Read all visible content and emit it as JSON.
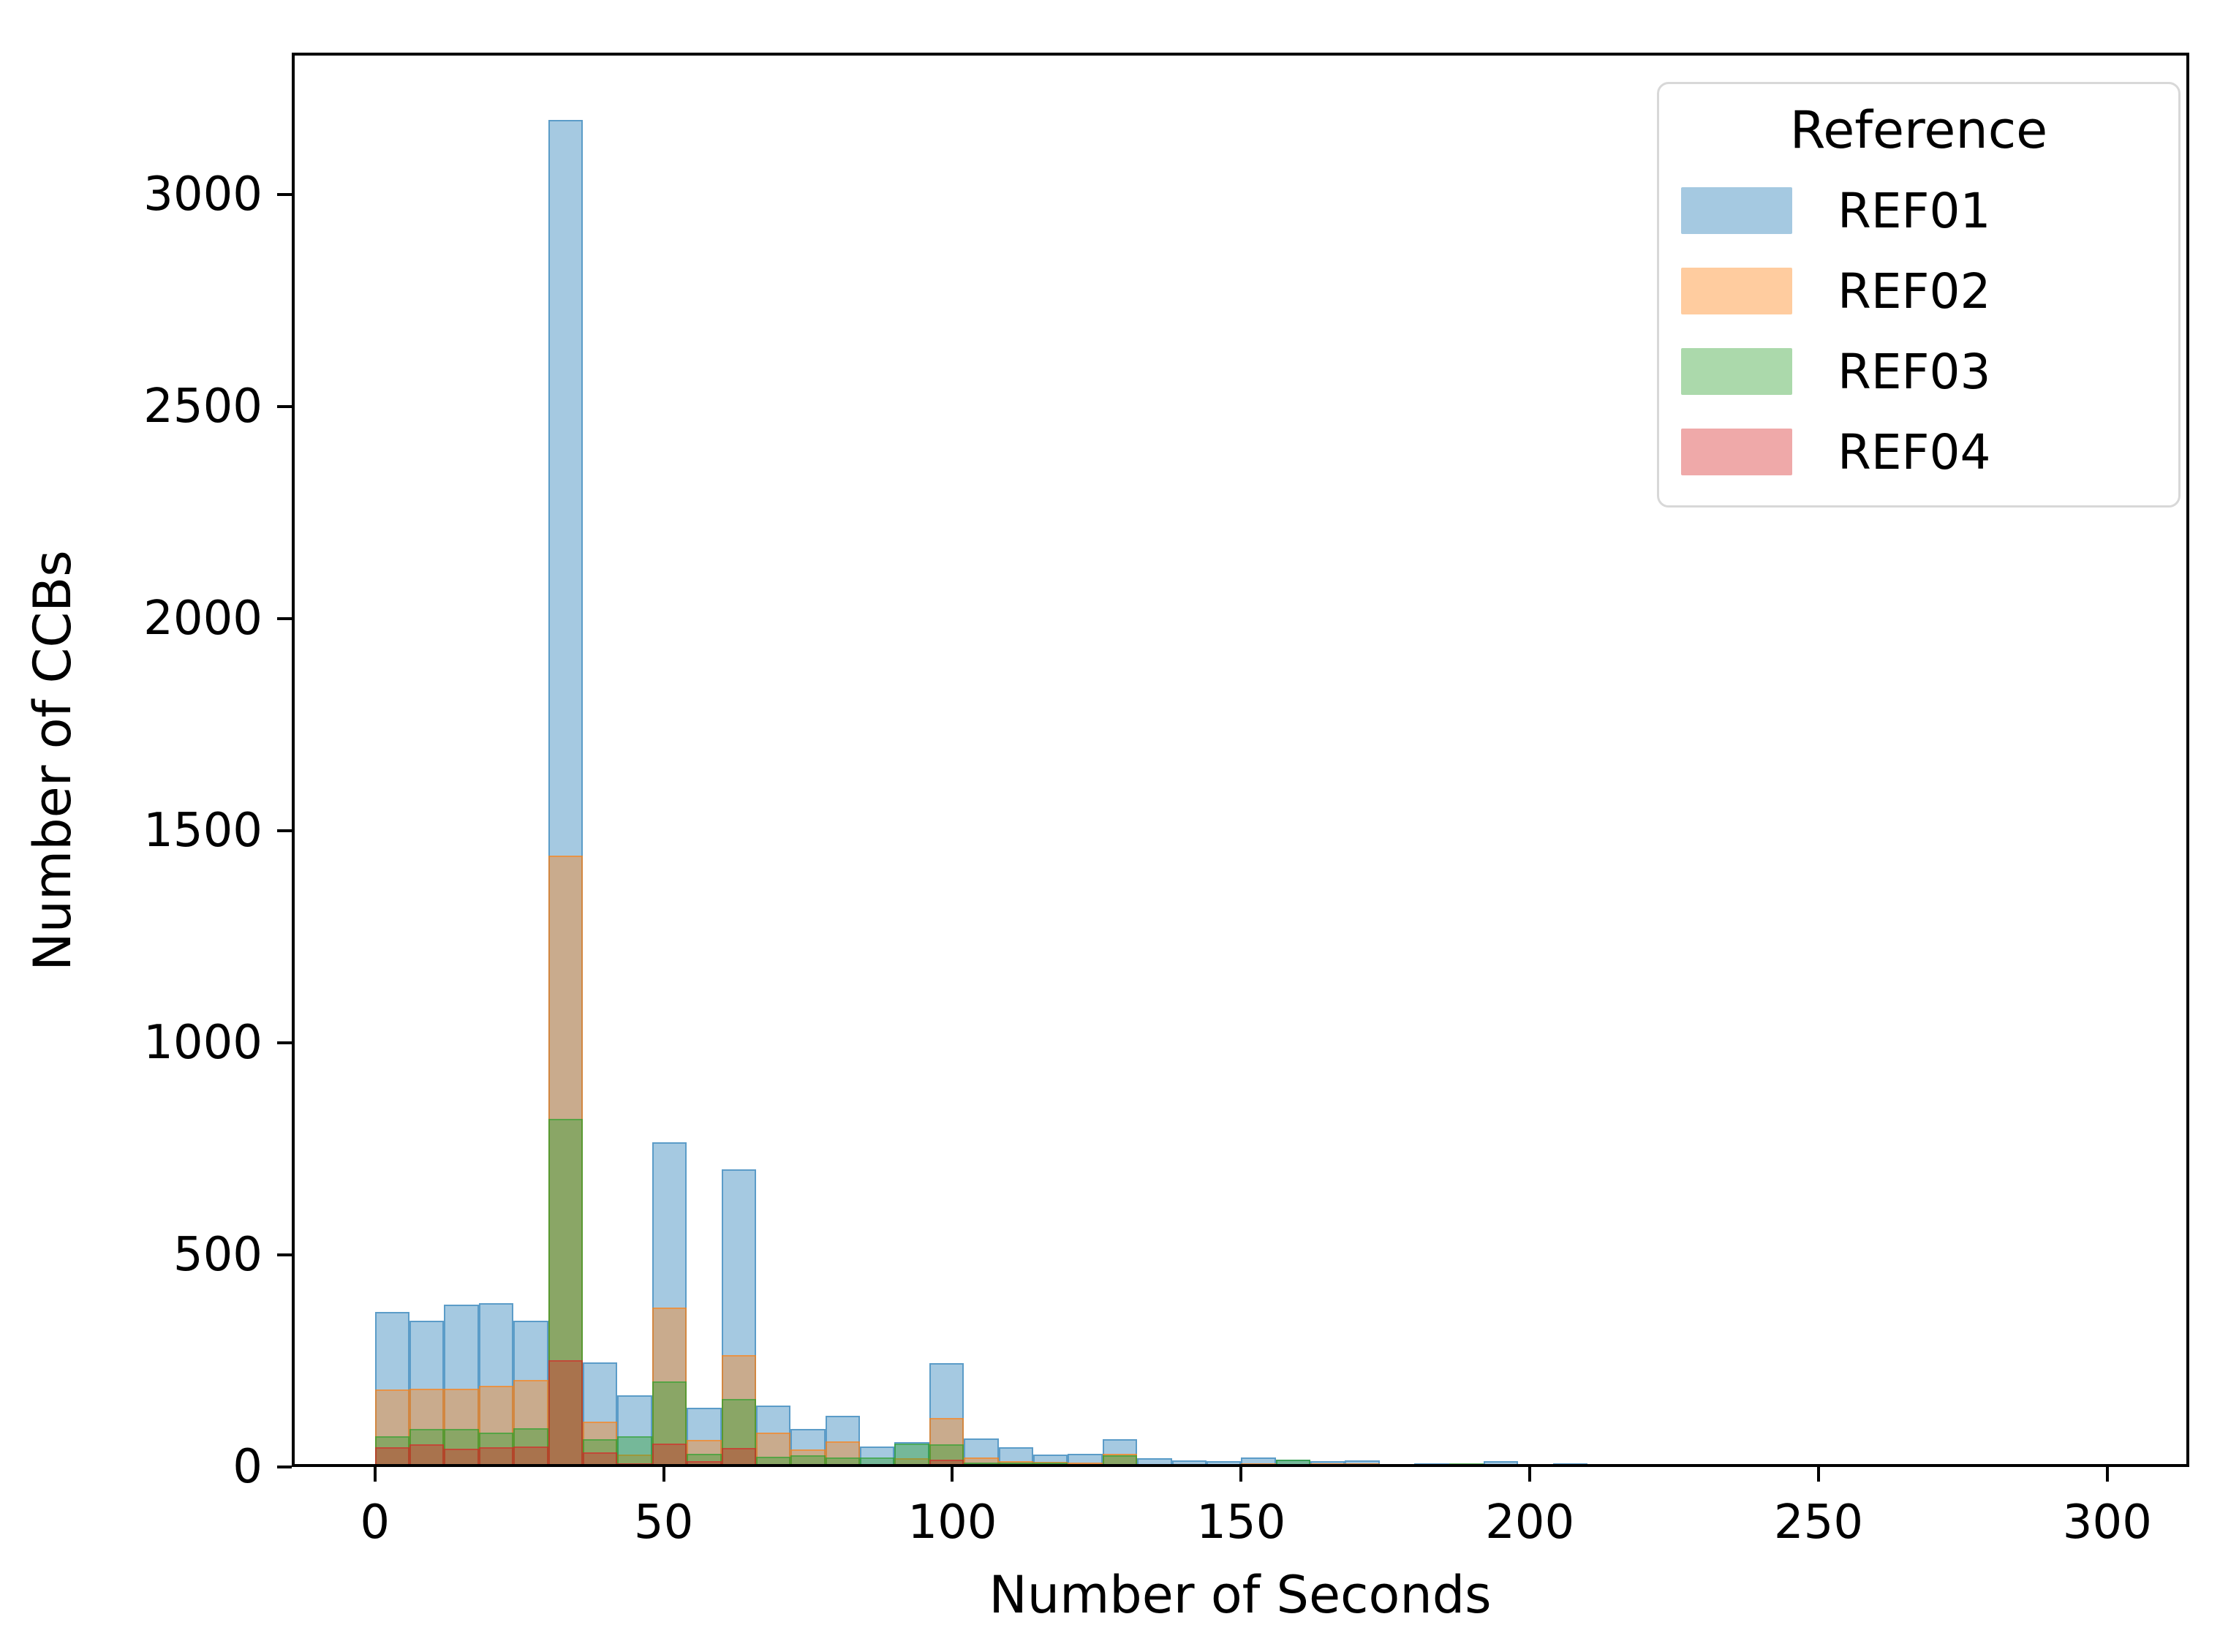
{
  "chart_data": {
    "type": "histogram",
    "multiple": "layer",
    "title": "",
    "xlabel": "Number of Seconds",
    "ylabel": "Number of CCBs",
    "bin_width_seconds": 6,
    "bin_start": 0,
    "xlim": [
      -14.4,
      314.2
    ],
    "ylim": [
      0,
      3334
    ],
    "x_ticks": [
      0,
      50,
      100,
      150,
      200,
      250,
      300
    ],
    "y_ticks": [
      0,
      500,
      1000,
      1500,
      2000,
      2500,
      3000
    ],
    "grid": false,
    "legend_position": "upper right",
    "fill_alpha": 0.4,
    "edge_alpha": 0.55,
    "series": [
      {
        "name": "REF01",
        "color": "#1f77b4",
        "values": [
          365,
          344,
          382,
          387,
          345,
          3175,
          246,
          169,
          765,
          140,
          702,
          145,
          90,
          120,
          48,
          58,
          245,
          68,
          47,
          30,
          31,
          65,
          20,
          16,
          14,
          22,
          17,
          13,
          15,
          6,
          8,
          7,
          13,
          0,
          9,
          0,
          0,
          4,
          4,
          4,
          0,
          0,
          4,
          0,
          0,
          0,
          0,
          0,
          3,
          3
        ]
      },
      {
        "name": "REF02",
        "color": "#ff7f0e",
        "values": [
          183,
          185,
          184,
          191,
          206,
          1441,
          107,
          30,
          376,
          64,
          264,
          81,
          42,
          60,
          5,
          20,
          116,
          22,
          13,
          12,
          10,
          31,
          4,
          3,
          3,
          8,
          3,
          8,
          8,
          2,
          2,
          2,
          5,
          0,
          2,
          0,
          0,
          1,
          4,
          1,
          0,
          0,
          1,
          0,
          0,
          0,
          0,
          0,
          1,
          1
        ]
      },
      {
        "name": "REF03",
        "color": "#2ca02c",
        "values": [
          73,
          89,
          89,
          81,
          92,
          820,
          65,
          72,
          202,
          31,
          160,
          24,
          27,
          22,
          22,
          56,
          53,
          10,
          10,
          10,
          7,
          28,
          3,
          7,
          4,
          6,
          17,
          2,
          2,
          1,
          1,
          8,
          2,
          0,
          1,
          0,
          0,
          0,
          1,
          0,
          0,
          0,
          0,
          0,
          0,
          0,
          0,
          0,
          0,
          0
        ]
      },
      {
        "name": "REF04",
        "color": "#d62728",
        "values": [
          47,
          53,
          43,
          47,
          49,
          251,
          35,
          8,
          55,
          14,
          45,
          7,
          4,
          3,
          2,
          4,
          18,
          2,
          2,
          2,
          4,
          5,
          1,
          1,
          1,
          1,
          1,
          1,
          1,
          0,
          0,
          1,
          1,
          0,
          0,
          0,
          0,
          0,
          2,
          0,
          0,
          0,
          0,
          0,
          0,
          0,
          0,
          0,
          0,
          0
        ]
      }
    ]
  },
  "legend": {
    "title": "Reference",
    "entries": [
      {
        "label": "REF01",
        "color": "#1f77b4"
      },
      {
        "label": "REF02",
        "color": "#ff7f0e"
      },
      {
        "label": "REF03",
        "color": "#2ca02c"
      },
      {
        "label": "REF04",
        "color": "#d62728"
      }
    ]
  }
}
